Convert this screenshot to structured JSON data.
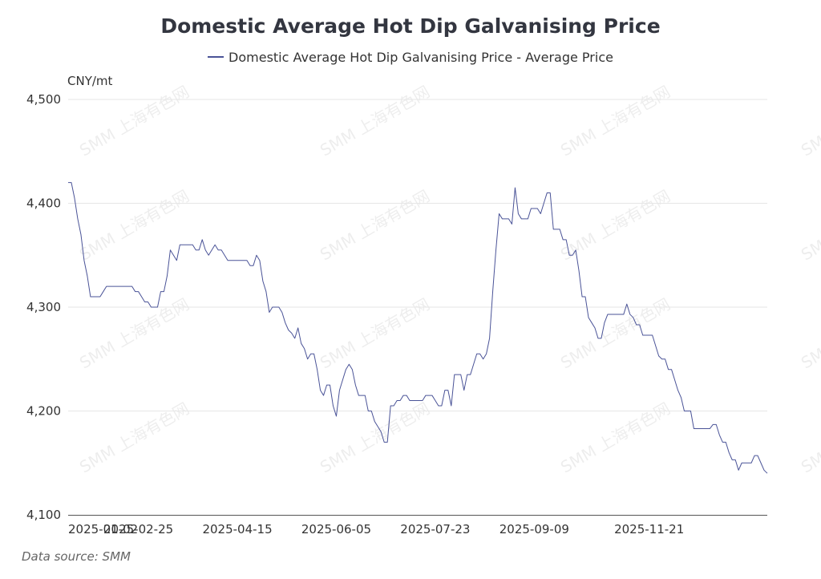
{
  "chart_data": {
    "type": "line",
    "title": "Domestic Average Hot Dip Galvanising Price",
    "unit_label": "CNY/mt",
    "ylim": [
      4100,
      4500
    ],
    "yticks": [
      "4,100",
      "4,200",
      "4,300",
      "4,400",
      "4,500"
    ],
    "ytick_values": [
      4100,
      4200,
      4300,
      4400,
      4500
    ],
    "xticks": [
      {
        "label": "2025-01-02",
        "index": 0
      },
      {
        "label": "2025-02-25",
        "index": 22
      },
      {
        "label": "2025-04-15",
        "index": 53
      },
      {
        "label": "2025-06-05",
        "index": 84
      },
      {
        "label": "2025-07-23",
        "index": 115
      },
      {
        "label": "2025-09-09",
        "index": 146
      },
      {
        "label": "2025-11-21",
        "index": 182
      }
    ],
    "grid": true,
    "legend_position": "top",
    "series": [
      {
        "name": "Domestic Average Hot Dip Galvanising Price - Average Price",
        "color": "#4a5397",
        "values": [
          4420,
          4420,
          4405,
          4385,
          4370,
          4345,
          4330,
          4310,
          4310,
          4310,
          4310,
          4315,
          4320,
          4320,
          4320,
          4320,
          4320,
          4320,
          4320,
          4320,
          4320,
          4315,
          4315,
          4310,
          4305,
          4305,
          4300,
          4300,
          4300,
          4315,
          4315,
          4330,
          4355,
          4350,
          4345,
          4360,
          4360,
          4360,
          4360,
          4360,
          4355,
          4355,
          4365,
          4355,
          4350,
          4355,
          4360,
          4355,
          4355,
          4350,
          4345,
          4345,
          4345,
          4345,
          4345,
          4345,
          4345,
          4340,
          4340,
          4350,
          4345,
          4325,
          4315,
          4295,
          4300,
          4300,
          4300,
          4295,
          4285,
          4278,
          4275,
          4270,
          4280,
          4265,
          4260,
          4250,
          4255,
          4255,
          4240,
          4220,
          4215,
          4225,
          4225,
          4205,
          4195,
          4220,
          4230,
          4240,
          4245,
          4240,
          4225,
          4215,
          4215,
          4215,
          4200,
          4200,
          4190,
          4185,
          4180,
          4170,
          4170,
          4205,
          4205,
          4210,
          4210,
          4215,
          4215,
          4210,
          4210,
          4210,
          4210,
          4210,
          4215,
          4215,
          4215,
          4210,
          4205,
          4205,
          4220,
          4220,
          4205,
          4235,
          4235,
          4235,
          4220,
          4235,
          4235,
          4245,
          4255,
          4255,
          4250,
          4255,
          4270,
          4315,
          4355,
          4390,
          4385,
          4385,
          4385,
          4380,
          4415,
          4390,
          4385,
          4385,
          4385,
          4395,
          4395,
          4395,
          4390,
          4400,
          4410,
          4410,
          4375,
          4375,
          4375,
          4365,
          4365,
          4350,
          4350,
          4355,
          4335,
          4310,
          4310,
          4290,
          4285,
          4280,
          4270,
          4270,
          4285,
          4293,
          4293,
          4293,
          4293,
          4293,
          4293,
          4303,
          4293,
          4290,
          4283,
          4283,
          4273,
          4273,
          4273,
          4273,
          4263,
          4253,
          4250,
          4250,
          4240,
          4240,
          4230,
          4220,
          4213,
          4200,
          4200,
          4200,
          4183,
          4183,
          4183,
          4183,
          4183,
          4183,
          4187,
          4187,
          4177,
          4170,
          4170,
          4160,
          4153,
          4153,
          4143,
          4150,
          4150,
          4150,
          4150,
          4157,
          4157,
          4150,
          4143,
          4140
        ]
      }
    ]
  },
  "watermark_text": "SMM 上海有色网",
  "source_label": "Data source:  SMM"
}
